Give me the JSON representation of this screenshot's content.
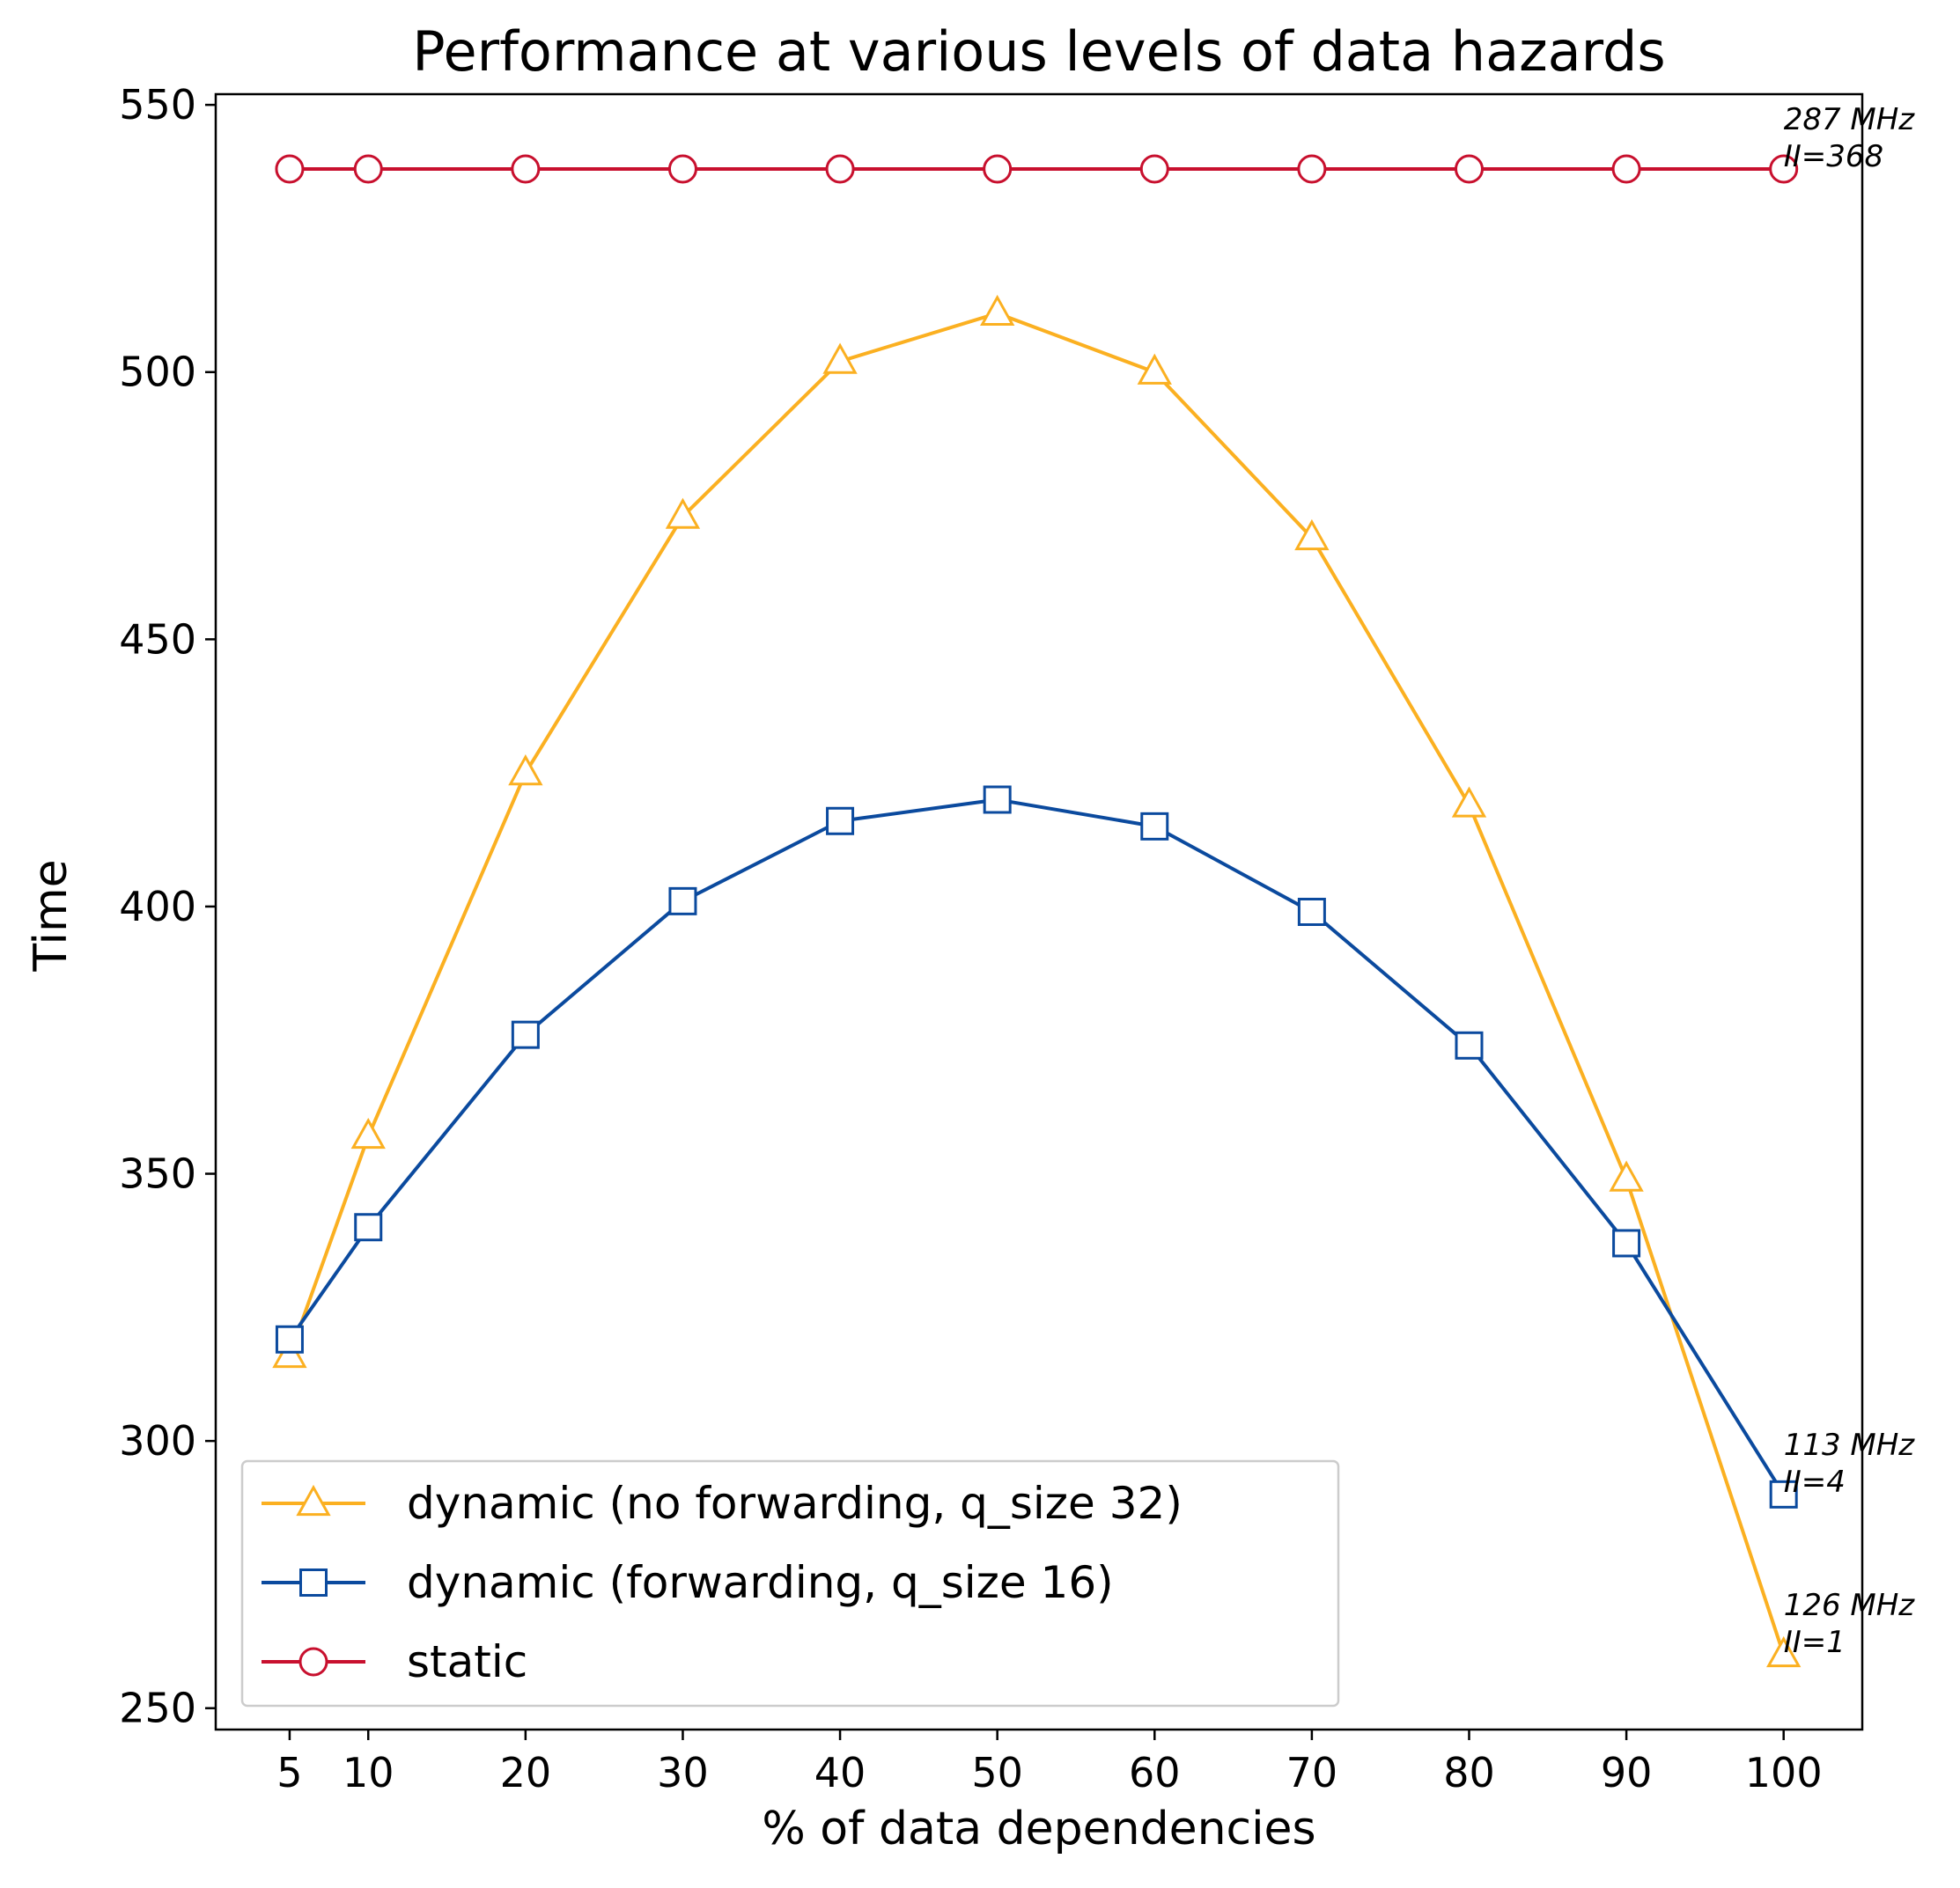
{
  "chart_data": {
    "type": "line",
    "title": "Performance at various levels of data hazards",
    "xlabel": "% of data dependencies",
    "ylabel": "Time",
    "x": [
      5,
      10,
      20,
      30,
      40,
      50,
      60,
      70,
      80,
      90,
      100
    ],
    "xticks": [
      "5",
      "10",
      "20",
      "30",
      "40",
      "50",
      "60",
      "70",
      "80",
      "90",
      "100"
    ],
    "yticks": [
      "250",
      "300",
      "350",
      "400",
      "450",
      "500",
      "550"
    ],
    "xlim": [
      0.3,
      105
    ],
    "ylim": [
      246,
      552
    ],
    "grid": false,
    "legend_position": "lower-left",
    "series": [
      {
        "name": "dynamic (no forwarding, q_size 32)",
        "marker": "triangle",
        "color": "#FBB021",
        "values": [
          316,
          357,
          425,
          473,
          502,
          511,
          500,
          469,
          419,
          349,
          260
        ]
      },
      {
        "name": "dynamic (forwarding, q_size 16)",
        "marker": "square",
        "color": "#0B4A9E",
        "values": [
          319,
          340,
          376,
          401,
          416,
          420,
          415,
          399,
          374,
          337,
          290
        ]
      },
      {
        "name": "static",
        "marker": "circle",
        "color": "#C8102E",
        "values": [
          538,
          538,
          538,
          538,
          538,
          538,
          538,
          538,
          538,
          538,
          538
        ]
      }
    ],
    "annotations": [
      {
        "text_line1": "287 MHz",
        "text_line2": "II=368",
        "x": 100,
        "y": 538
      },
      {
        "text_line1": "113 MHz",
        "text_line2": "II=4",
        "x": 100,
        "y": 290
      },
      {
        "text_line1": "126 MHz",
        "text_line2": "II=1",
        "x": 100,
        "y": 260
      }
    ]
  }
}
